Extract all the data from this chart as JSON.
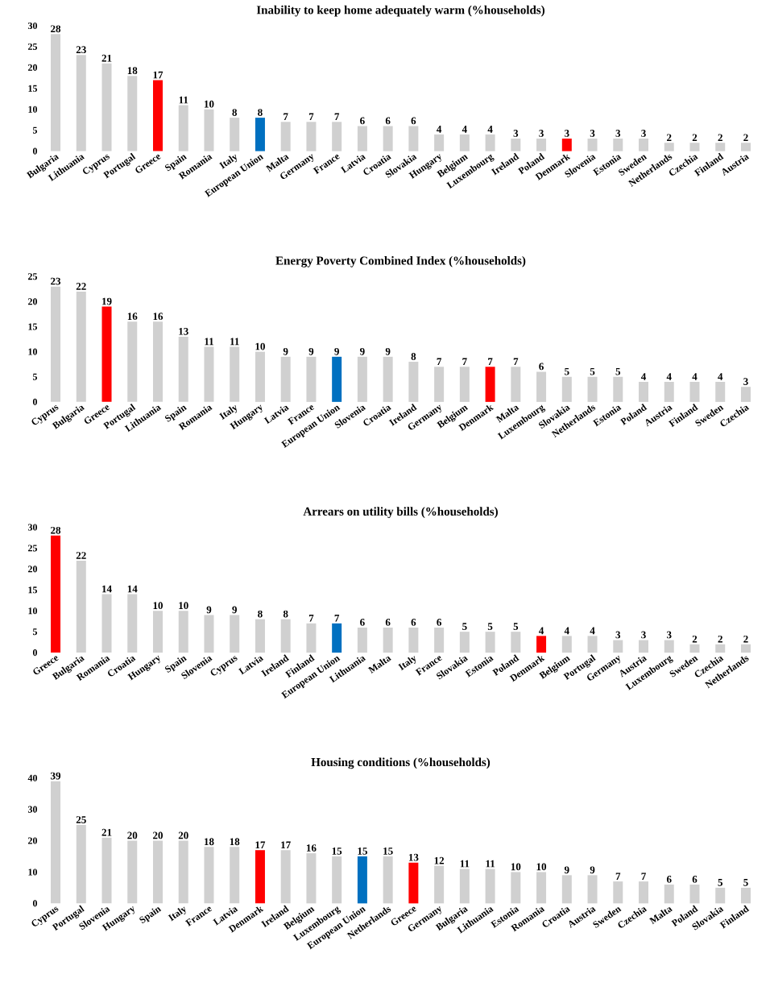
{
  "chart_data": [
    {
      "type": "bar",
      "title": "Inability to keep home adequately warm (%households)",
      "categories": [
        "Bulgaria",
        "Lithuania",
        "Cyprus",
        "Portugal",
        "Greece",
        "Spain",
        "Romania",
        "Italy",
        "European Union",
        "Malta",
        "Germany",
        "France",
        "Latvia",
        "Croatia",
        "Slovakia",
        "Hungary",
        "Belgium",
        "Luxembourg",
        "Ireland",
        "Poland",
        "Denmark",
        "Slovenia",
        "Estonia",
        "Sweden",
        "Netherlands",
        "Czechia",
        "Finland",
        "Austria"
      ],
      "values": [
        28,
        23,
        21,
        18,
        17,
        11,
        10,
        8,
        8,
        7,
        7,
        7,
        6,
        6,
        6,
        4,
        4,
        4,
        3,
        3,
        3,
        3,
        3,
        3,
        2,
        2,
        2,
        2
      ],
      "colors": [
        "#d0d0d0",
        "#d0d0d0",
        "#d0d0d0",
        "#d0d0d0",
        "#ff0000",
        "#d0d0d0",
        "#d0d0d0",
        "#d0d0d0",
        "#0070c0",
        "#d0d0d0",
        "#d0d0d0",
        "#d0d0d0",
        "#d0d0d0",
        "#d0d0d0",
        "#d0d0d0",
        "#d0d0d0",
        "#d0d0d0",
        "#d0d0d0",
        "#d0d0d0",
        "#d0d0d0",
        "#ff0000",
        "#d0d0d0",
        "#d0d0d0",
        "#d0d0d0",
        "#d0d0d0",
        "#d0d0d0",
        "#d0d0d0",
        "#d0d0d0"
      ],
      "ylim": [
        0,
        30
      ],
      "yticks": [
        0,
        5,
        10,
        15,
        20,
        25,
        30
      ],
      "data_labels": true
    },
    {
      "type": "bar",
      "title": "Energy Poverty Combined Index (%households)",
      "categories": [
        "Cyprus",
        "Bulgaria",
        "Greece",
        "Portugal",
        "Lithuania",
        "Spain",
        "Romania",
        "Italy",
        "Hungary",
        "Latvia",
        "France",
        "European Union",
        "Slovenia",
        "Croatia",
        "Ireland",
        "Germany",
        "Belgium",
        "Denmark",
        "Malta",
        "Luxembourg",
        "Slovakia",
        "Netherlands",
        "Estonia",
        "Poland",
        "Austria",
        "Finland",
        "Sweden",
        "Czechia"
      ],
      "values": [
        23,
        22,
        19,
        16,
        16,
        13,
        11,
        11,
        10,
        9,
        9,
        9,
        9,
        9,
        8,
        7,
        7,
        7,
        7,
        6,
        5,
        5,
        5,
        4,
        4,
        4,
        4,
        3
      ],
      "colors": [
        "#d0d0d0",
        "#d0d0d0",
        "#ff0000",
        "#d0d0d0",
        "#d0d0d0",
        "#d0d0d0",
        "#d0d0d0",
        "#d0d0d0",
        "#d0d0d0",
        "#d0d0d0",
        "#d0d0d0",
        "#0070c0",
        "#d0d0d0",
        "#d0d0d0",
        "#d0d0d0",
        "#d0d0d0",
        "#d0d0d0",
        "#ff0000",
        "#d0d0d0",
        "#d0d0d0",
        "#d0d0d0",
        "#d0d0d0",
        "#d0d0d0",
        "#d0d0d0",
        "#d0d0d0",
        "#d0d0d0",
        "#d0d0d0",
        "#d0d0d0"
      ],
      "ylim": [
        0,
        25
      ],
      "yticks": [
        0,
        5,
        10,
        15,
        20,
        25
      ],
      "data_labels": true
    },
    {
      "type": "bar",
      "title": "Arrears on utility bills  (%households)",
      "categories": [
        "Greece",
        "Bulgaria",
        "Romania",
        "Croatia",
        "Hungary",
        "Spain",
        "Slovenia",
        "Cyprus",
        "Latvia",
        "Ireland",
        "Finland",
        "European Union",
        "Lithuania",
        "Malta",
        "Italy",
        "France",
        "Slovakia",
        "Estonia",
        "Poland",
        "Denmark",
        "Belgium",
        "Portugal",
        "Germany",
        "Austria",
        "Luxembourg",
        "Sweden",
        "Czechia",
        "Netherlands"
      ],
      "values": [
        28,
        22,
        14,
        14,
        10,
        10,
        9,
        9,
        8,
        8,
        7,
        7,
        6,
        6,
        6,
        6,
        5,
        5,
        5,
        4,
        4,
        4,
        3,
        3,
        3,
        2,
        2,
        2
      ],
      "colors": [
        "#ff0000",
        "#d0d0d0",
        "#d0d0d0",
        "#d0d0d0",
        "#d0d0d0",
        "#d0d0d0",
        "#d0d0d0",
        "#d0d0d0",
        "#d0d0d0",
        "#d0d0d0",
        "#d0d0d0",
        "#0070c0",
        "#d0d0d0",
        "#d0d0d0",
        "#d0d0d0",
        "#d0d0d0",
        "#d0d0d0",
        "#d0d0d0",
        "#d0d0d0",
        "#ff0000",
        "#d0d0d0",
        "#d0d0d0",
        "#d0d0d0",
        "#d0d0d0",
        "#d0d0d0",
        "#d0d0d0",
        "#d0d0d0",
        "#d0d0d0"
      ],
      "ylim": [
        0,
        30
      ],
      "yticks": [
        0,
        5,
        10,
        15,
        20,
        25,
        30
      ],
      "data_labels": true
    },
    {
      "type": "bar",
      "title": "Housing conditions  (%households)",
      "categories": [
        "Cyprus",
        "Portugal",
        "Slovenia",
        "Hungary",
        "Spain",
        "Italy",
        "France",
        "Latvia",
        "Denmark",
        "Ireland",
        "Belgium",
        "Luxembourg",
        "European Union",
        "Netherlands",
        "Greece",
        "Germany",
        "Bulgaria",
        "Lithuania",
        "Estonia",
        "Romania",
        "Croatia",
        "Austria",
        "Sweden",
        "Czechia",
        "Malta",
        "Poland",
        "Slovakia",
        "Finland"
      ],
      "values": [
        39,
        25,
        21,
        20,
        20,
        20,
        18,
        18,
        17,
        17,
        16,
        15,
        15,
        15,
        13,
        12,
        11,
        11,
        10,
        10,
        9,
        9,
        7,
        7,
        6,
        6,
        5,
        5
      ],
      "colors": [
        "#d0d0d0",
        "#d0d0d0",
        "#d0d0d0",
        "#d0d0d0",
        "#d0d0d0",
        "#d0d0d0",
        "#d0d0d0",
        "#d0d0d0",
        "#ff0000",
        "#d0d0d0",
        "#d0d0d0",
        "#d0d0d0",
        "#0070c0",
        "#d0d0d0",
        "#ff0000",
        "#d0d0d0",
        "#d0d0d0",
        "#d0d0d0",
        "#d0d0d0",
        "#d0d0d0",
        "#d0d0d0",
        "#d0d0d0",
        "#d0d0d0",
        "#d0d0d0",
        "#d0d0d0",
        "#d0d0d0",
        "#d0d0d0",
        "#d0d0d0"
      ],
      "ylim": [
        0,
        40
      ],
      "yticks": [
        0,
        10,
        20,
        30,
        40
      ],
      "data_labels": true
    }
  ]
}
